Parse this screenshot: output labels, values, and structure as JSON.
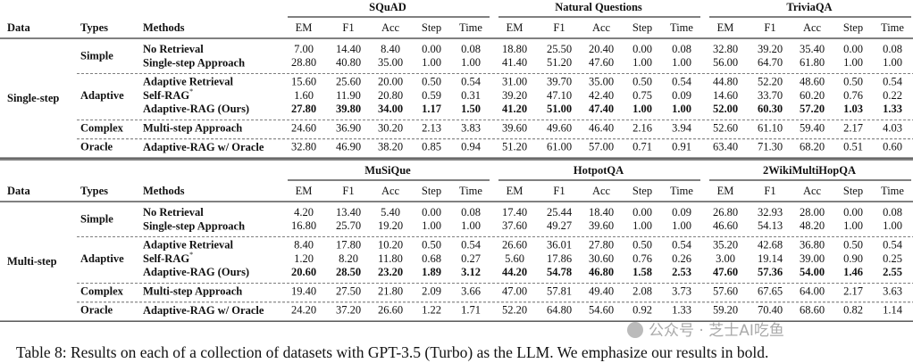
{
  "caption": "Table 8: Results on each of a collection of datasets with GPT-3.5 (Turbo) as the LLM. We emphasize our results in bold.",
  "watermark": "公众号 · 芝士AI吃鱼",
  "header": {
    "data": "Data",
    "types": "Types",
    "methods": "Methods",
    "metrics": [
      "EM",
      "F1",
      "Acc",
      "Step",
      "Time"
    ]
  },
  "tables": [
    {
      "datasets": [
        "SQuAD",
        "Natural Questions",
        "TriviaQA"
      ],
      "group": "Single-step",
      "types": [
        {
          "label": "Simple",
          "rows": [
            {
              "method": "No Retrieval",
              "values": [
                "7.00",
                "14.40",
                "8.40",
                "0.00",
                "0.08",
                "18.80",
                "25.50",
                "20.40",
                "0.00",
                "0.08",
                "32.80",
                "39.20",
                "35.40",
                "0.00",
                "0.08"
              ]
            },
            {
              "method": "Single-step Approach",
              "values": [
                "28.80",
                "40.80",
                "35.00",
                "1.00",
                "1.00",
                "41.40",
                "51.20",
                "47.60",
                "1.00",
                "1.00",
                "56.00",
                "64.70",
                "61.80",
                "1.00",
                "1.00"
              ]
            }
          ]
        },
        {
          "label": "Adaptive",
          "rows": [
            {
              "method": "Adaptive Retrieval",
              "values": [
                "15.60",
                "25.60",
                "20.00",
                "0.50",
                "0.54",
                "31.00",
                "39.70",
                "35.00",
                "0.50",
                "0.54",
                "44.80",
                "52.20",
                "48.60",
                "0.50",
                "0.54"
              ]
            },
            {
              "method": "Self-RAG",
              "mark": "*",
              "values": [
                "1.60",
                "11.90",
                "20.80",
                "0.59",
                "0.31",
                "39.20",
                "47.10",
                "42.40",
                "0.75",
                "0.09",
                "14.60",
                "33.70",
                "60.20",
                "0.76",
                "0.22"
              ]
            },
            {
              "method": "Adaptive-RAG (Ours)",
              "bold": true,
              "values": [
                "27.80",
                "39.80",
                "34.00",
                "1.17",
                "1.50",
                "41.20",
                "51.00",
                "47.40",
                "1.00",
                "1.00",
                "52.00",
                "60.30",
                "57.20",
                "1.03",
                "1.33"
              ]
            }
          ]
        },
        {
          "label": "Complex",
          "rows": [
            {
              "method": "Multi-step Approach",
              "values": [
                "24.60",
                "36.90",
                "30.20",
                "2.13",
                "3.83",
                "39.60",
                "49.60",
                "46.40",
                "2.16",
                "3.94",
                "52.60",
                "61.10",
                "59.40",
                "2.17",
                "4.03"
              ]
            }
          ]
        },
        {
          "label": "Oracle",
          "rows": [
            {
              "method": "Adaptive-RAG w/ Oracle",
              "values": [
                "32.80",
                "46.90",
                "38.20",
                "0.85",
                "0.94",
                "51.20",
                "61.00",
                "57.00",
                "0.71",
                "0.91",
                "63.40",
                "71.30",
                "68.20",
                "0.51",
                "0.60"
              ]
            }
          ]
        }
      ]
    },
    {
      "datasets": [
        "MuSiQue",
        "HotpotQA",
        "2WikiMultiHopQA"
      ],
      "group": "Multi-step",
      "types": [
        {
          "label": "Simple",
          "rows": [
            {
              "method": "No Retrieval",
              "values": [
                "4.20",
                "13.40",
                "5.40",
                "0.00",
                "0.08",
                "17.40",
                "25.44",
                "18.40",
                "0.00",
                "0.09",
                "26.80",
                "32.93",
                "28.00",
                "0.00",
                "0.08"
              ]
            },
            {
              "method": "Single-step Approach",
              "values": [
                "16.80",
                "25.70",
                "19.20",
                "1.00",
                "1.00",
                "37.60",
                "49.27",
                "39.60",
                "1.00",
                "1.00",
                "46.60",
                "54.13",
                "48.20",
                "1.00",
                "1.00"
              ]
            }
          ]
        },
        {
          "label": "Adaptive",
          "rows": [
            {
              "method": "Adaptive Retrieval",
              "values": [
                "8.40",
                "17.80",
                "10.20",
                "0.50",
                "0.54",
                "26.60",
                "36.01",
                "27.80",
                "0.50",
                "0.54",
                "35.20",
                "42.68",
                "36.80",
                "0.50",
                "0.54"
              ]
            },
            {
              "method": "Self-RAG",
              "mark": "*",
              "values": [
                "1.20",
                "8.20",
                "11.80",
                "0.68",
                "0.27",
                "5.60",
                "17.86",
                "30.60",
                "0.76",
                "0.26",
                "3.00",
                "19.14",
                "39.00",
                "0.90",
                "0.25"
              ]
            },
            {
              "method": "Adaptive-RAG (Ours)",
              "bold": true,
              "values": [
                "20.60",
                "28.50",
                "23.20",
                "1.89",
                "3.12",
                "44.20",
                "54.78",
                "46.80",
                "1.58",
                "2.53",
                "47.60",
                "57.36",
                "54.00",
                "1.46",
                "2.55"
              ]
            }
          ]
        },
        {
          "label": "Complex",
          "rows": [
            {
              "method": "Multi-step Approach",
              "values": [
                "19.40",
                "27.50",
                "21.80",
                "2.09",
                "3.66",
                "47.00",
                "57.81",
                "49.40",
                "2.08",
                "3.73",
                "57.60",
                "67.65",
                "64.00",
                "2.17",
                "3.63"
              ]
            }
          ]
        },
        {
          "label": "Oracle",
          "rows": [
            {
              "method": "Adaptive-RAG w/ Oracle",
              "values": [
                "24.20",
                "37.20",
                "26.60",
                "1.22",
                "1.71",
                "52.20",
                "64.80",
                "54.60",
                "0.92",
                "1.33",
                "59.20",
                "70.40",
                "68.60",
                "0.82",
                "1.14"
              ]
            }
          ]
        }
      ]
    }
  ]
}
